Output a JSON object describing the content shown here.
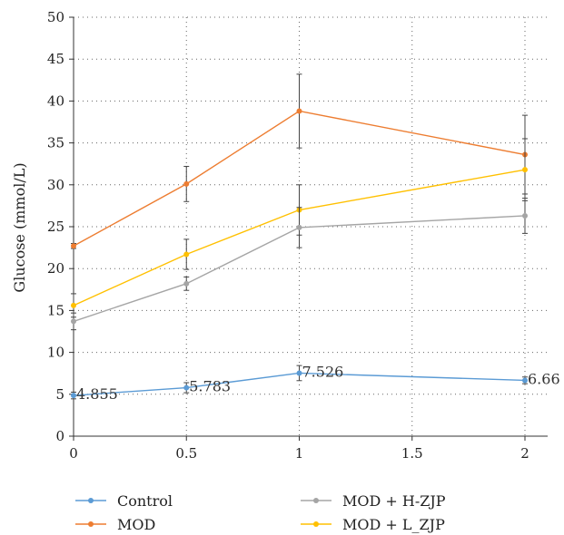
{
  "chart_data": {
    "type": "line",
    "ylabel": "Glucose (mmol/L)",
    "xlabel": "",
    "xlim": [
      0,
      2.1
    ],
    "ylim": [
      0,
      50
    ],
    "x_ticks": [
      0,
      0.5,
      1,
      1.5,
      2
    ],
    "x_tick_labels": [
      "0",
      "0.5",
      "1",
      "1.5",
      "2"
    ],
    "y_ticks": [
      0,
      5,
      10,
      15,
      20,
      25,
      30,
      35,
      40,
      45,
      50
    ],
    "y_tick_labels": [
      "0",
      "5",
      "10",
      "15",
      "20",
      "25",
      "30",
      "35",
      "40",
      "45",
      "50"
    ],
    "grid": "dotted",
    "legend_position": "bottom",
    "x": [
      0,
      0.5,
      1,
      2
    ],
    "series": [
      {
        "name": "Control",
        "color": "#5b9bd5",
        "values": [
          4.855,
          5.783,
          7.526,
          6.66
        ],
        "errors": [
          0.4,
          0.6,
          0.9,
          0.4
        ],
        "data_labels": [
          "4.855",
          "5.783",
          "7.526",
          "6.66"
        ]
      },
      {
        "name": "MOD",
        "color": "#ed7d31",
        "values": [
          22.7,
          30.1,
          38.8,
          33.6
        ],
        "errors": [
          0.3,
          2.1,
          4.4,
          4.7
        ]
      },
      {
        "name": "MOD + H-ZJP",
        "color": "#a5a5a5",
        "values": [
          13.7,
          18.2,
          24.9,
          26.3
        ],
        "errors": [
          1.0,
          0.8,
          2.4,
          2.1
        ]
      },
      {
        "name": "MOD + L_ZJP",
        "color": "#ffc000",
        "values": [
          15.6,
          21.7,
          27.0,
          31.8
        ],
        "errors": [
          1.4,
          1.8,
          3.0,
          3.7
        ]
      }
    ]
  }
}
